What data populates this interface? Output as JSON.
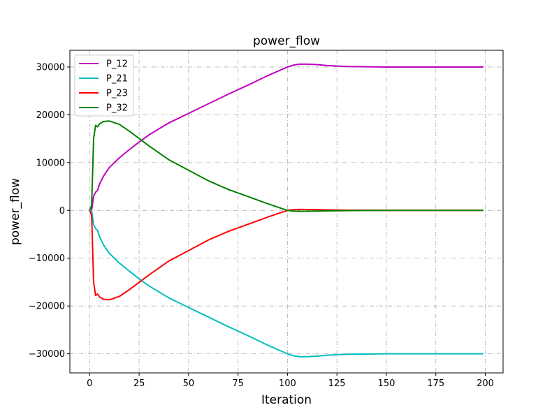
{
  "chart_data": {
    "type": "line",
    "title": "power_flow",
    "xlabel": "Iteration",
    "ylabel": "power_flow",
    "xlim": [
      -10,
      209
    ],
    "ylim": [
      -34000,
      33500
    ],
    "xticks": [
      0,
      25,
      50,
      75,
      100,
      125,
      150,
      175,
      200
    ],
    "xtick_labels": [
      "0",
      "25",
      "50",
      "75",
      "100",
      "125",
      "150",
      "175",
      "200"
    ],
    "yticks": [
      -30000,
      -20000,
      -10000,
      0,
      10000,
      20000,
      30000
    ],
    "ytick_labels": [
      "−30000",
      "−20000",
      "−10000",
      "0",
      "10000",
      "20000",
      "30000"
    ],
    "grid": true,
    "legend_position": "top-left",
    "series": [
      {
        "name": "P_12",
        "color": "#bf00bf",
        "x": [
          0,
          1,
          2,
          3,
          4,
          5,
          7,
          10,
          15,
          20,
          25,
          30,
          40,
          50,
          60,
          70,
          80,
          90,
          100,
          103,
          106,
          110,
          115,
          120,
          130,
          140,
          150,
          175,
          199
        ],
        "y": [
          0,
          0,
          3000,
          3800,
          4200,
          5500,
          7200,
          9000,
          11000,
          12700,
          14300,
          15800,
          18300,
          20300,
          22300,
          24300,
          26200,
          28200,
          30000,
          30400,
          30600,
          30600,
          30500,
          30300,
          30100,
          30050,
          30000,
          30000,
          30000
        ]
      },
      {
        "name": "P_21",
        "color": "#00bfbf",
        "x": [
          0,
          1,
          2,
          3,
          4,
          5,
          7,
          10,
          15,
          20,
          25,
          30,
          40,
          50,
          60,
          70,
          80,
          90,
          100,
          103,
          106,
          110,
          115,
          120,
          130,
          140,
          150,
          175,
          199
        ],
        "y": [
          0,
          0,
          -3000,
          -3800,
          -4200,
          -5500,
          -7200,
          -9000,
          -11000,
          -12700,
          -14300,
          -15800,
          -18300,
          -20300,
          -22300,
          -24300,
          -26200,
          -28200,
          -30000,
          -30400,
          -30600,
          -30600,
          -30500,
          -30300,
          -30100,
          -30050,
          -30000,
          -30000,
          -30000
        ]
      },
      {
        "name": "P_23",
        "color": "#ff0000",
        "x": [
          0,
          1,
          2,
          3,
          4,
          5,
          7,
          10,
          15,
          20,
          30,
          40,
          50,
          60,
          70,
          80,
          90,
          100,
          103,
          106,
          110,
          120,
          130,
          150,
          175,
          199
        ],
        "y": [
          0,
          -1000,
          -15000,
          -17800,
          -17500,
          -18100,
          -18600,
          -18700,
          -18000,
          -16600,
          -13500,
          -10600,
          -8400,
          -6200,
          -4400,
          -2900,
          -1400,
          0,
          150,
          200,
          180,
          100,
          50,
          0,
          0,
          0
        ]
      },
      {
        "name": "P_32",
        "color": "#008000",
        "x": [
          0,
          1,
          2,
          3,
          4,
          5,
          7,
          10,
          15,
          20,
          30,
          40,
          50,
          60,
          70,
          80,
          90,
          100,
          103,
          106,
          110,
          120,
          130,
          150,
          175,
          199
        ],
        "y": [
          0,
          1000,
          15000,
          17800,
          17500,
          18100,
          18600,
          18700,
          18000,
          16600,
          13500,
          10600,
          8400,
          6200,
          4400,
          2900,
          1400,
          0,
          -150,
          -200,
          -180,
          -100,
          -50,
          0,
          0,
          0
        ]
      }
    ]
  }
}
